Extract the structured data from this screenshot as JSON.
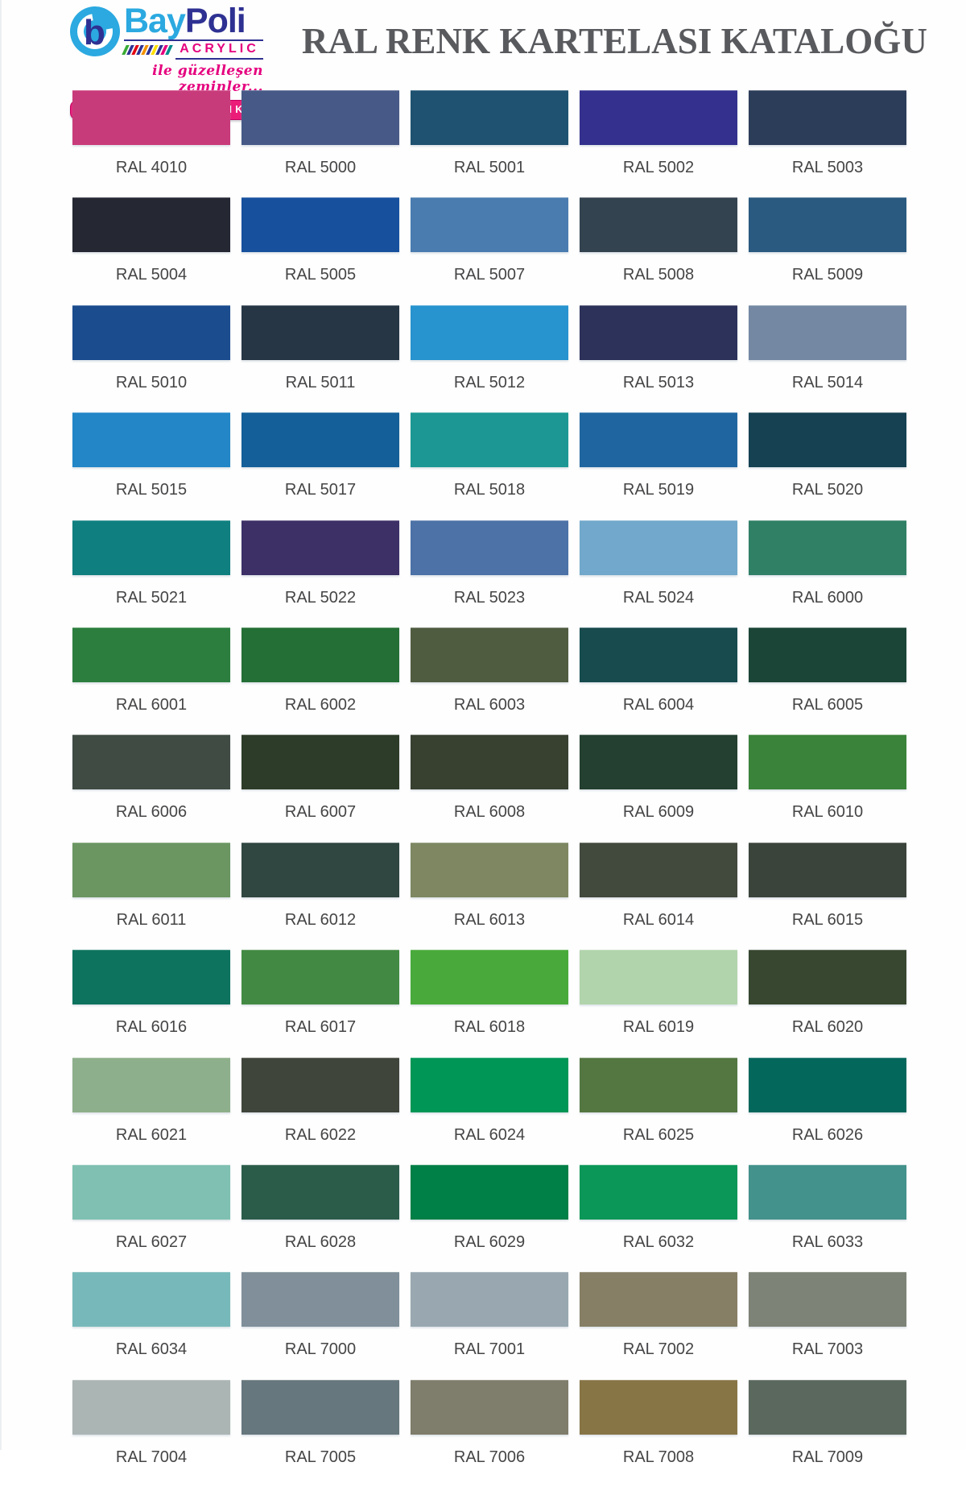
{
  "header": {
    "logo": {
      "mark_glyph": "b",
      "brand_bay": "Bay",
      "brand_poli": "Poli",
      "acrylic": "ACRYLIC",
      "tagline": "ile güzelleşen zeminler...",
      "banner": "EPOKSİ, POLİÜRETAN VE YAPI KİMYASALLARI",
      "stripe_colors": [
        "#3AAA35",
        "#2E3192",
        "#E30613",
        "#2E3192",
        "#F39200",
        "#2E3192",
        "#FFDE00",
        "#2E3192",
        "#E5007E",
        "#008D8D"
      ]
    },
    "title": "RAL RENK KARTELASI KATALOĞU"
  },
  "brand_colors": {
    "light_blue": "#2BA9E0",
    "navy": "#2E3192",
    "magenta": "#E5007E",
    "banner_pink": "#EB1D79",
    "title_grey": "#595A5E"
  },
  "swatches": [
    {
      "code": "RAL 4010",
      "hex": "#C83B7A"
    },
    {
      "code": "RAL 5000",
      "hex": "#475A87"
    },
    {
      "code": "RAL 5001",
      "hex": "#1F5270"
    },
    {
      "code": "RAL 5002",
      "hex": "#33318D"
    },
    {
      "code": "RAL 5003",
      "hex": "#2C3D59"
    },
    {
      "code": "RAL 5004",
      "hex": "#252733"
    },
    {
      "code": "RAL 5005",
      "hex": "#17519E"
    },
    {
      "code": "RAL 5007",
      "hex": "#4A7CAF"
    },
    {
      "code": "RAL 5008",
      "hex": "#344350"
    },
    {
      "code": "RAL 5009",
      "hex": "#2A5A7F"
    },
    {
      "code": "RAL 5010",
      "hex": "#1B4C8E"
    },
    {
      "code": "RAL 5011",
      "hex": "#263645"
    },
    {
      "code": "RAL 5012",
      "hex": "#2793CF"
    },
    {
      "code": "RAL 5013",
      "hex": "#2C3259"
    },
    {
      "code": "RAL 5014",
      "hex": "#7488A3"
    },
    {
      "code": "RAL 5015",
      "hex": "#2286C7"
    },
    {
      "code": "RAL 5017",
      "hex": "#145F99"
    },
    {
      "code": "RAL 5018",
      "hex": "#1C9793"
    },
    {
      "code": "RAL 5019",
      "hex": "#1F66A0"
    },
    {
      "code": "RAL 5020",
      "hex": "#154152"
    },
    {
      "code": "RAL 5021",
      "hex": "#0F7F7F"
    },
    {
      "code": "RAL 5022",
      "hex": "#3D3067"
    },
    {
      "code": "RAL 5023",
      "hex": "#4C72A7"
    },
    {
      "code": "RAL 5024",
      "hex": "#71A8CB"
    },
    {
      "code": "RAL 6000",
      "hex": "#308066"
    },
    {
      "code": "RAL 6001",
      "hex": "#2C7E3E"
    },
    {
      "code": "RAL 6002",
      "hex": "#246F35"
    },
    {
      "code": "RAL 6003",
      "hex": "#505C40"
    },
    {
      "code": "RAL 6004",
      "hex": "#174B4E"
    },
    {
      "code": "RAL 6005",
      "hex": "#1B4537"
    },
    {
      "code": "RAL 6006",
      "hex": "#3F4B43"
    },
    {
      "code": "RAL 6007",
      "hex": "#2D3C28"
    },
    {
      "code": "RAL 6008",
      "hex": "#384030"
    },
    {
      "code": "RAL 6009",
      "hex": "#244030"
    },
    {
      "code": "RAL 6010",
      "hex": "#3A833A"
    },
    {
      "code": "RAL 6011",
      "hex": "#6B9662"
    },
    {
      "code": "RAL 6012",
      "hex": "#304640"
    },
    {
      "code": "RAL 6013",
      "hex": "#7E8762"
    },
    {
      "code": "RAL 6014",
      "hex": "#42493D"
    },
    {
      "code": "RAL 6015",
      "hex": "#3B443B"
    },
    {
      "code": "RAL 6016",
      "hex": "#0D735E"
    },
    {
      "code": "RAL 6017",
      "hex": "#428A43"
    },
    {
      "code": "RAL 6018",
      "hex": "#49AA3B"
    },
    {
      "code": "RAL 6019",
      "hex": "#B2D4AC"
    },
    {
      "code": "RAL 6020",
      "hex": "#374730"
    },
    {
      "code": "RAL 6021",
      "hex": "#8EAF8B"
    },
    {
      "code": "RAL 6022",
      "hex": "#40453B"
    },
    {
      "code": "RAL 6024",
      "hex": "#009656"
    },
    {
      "code": "RAL 6025",
      "hex": "#547742"
    },
    {
      "code": "RAL 6026",
      "hex": "#04675C"
    },
    {
      "code": "RAL 6027",
      "hex": "#7FC0B2"
    },
    {
      "code": "RAL 6028",
      "hex": "#2B5C4A"
    },
    {
      "code": "RAL 6029",
      "hex": "#007F46"
    },
    {
      "code": "RAL 6032",
      "hex": "#0B9758"
    },
    {
      "code": "RAL 6033",
      "hex": "#43928B"
    },
    {
      "code": "RAL 6034",
      "hex": "#77B9BA"
    },
    {
      "code": "RAL 7000",
      "hex": "#808F9A"
    },
    {
      "code": "RAL 7001",
      "hex": "#99A8B0"
    },
    {
      "code": "RAL 7002",
      "hex": "#867F65"
    },
    {
      "code": "RAL 7003",
      "hex": "#7D8376"
    },
    {
      "code": "RAL 7004",
      "hex": "#ABB5B4"
    },
    {
      "code": "RAL 7005",
      "hex": "#66777D"
    },
    {
      "code": "RAL 7006",
      "hex": "#7F7D6B"
    },
    {
      "code": "RAL 7008",
      "hex": "#877546"
    },
    {
      "code": "RAL 7009",
      "hex": "#5B685E"
    }
  ]
}
